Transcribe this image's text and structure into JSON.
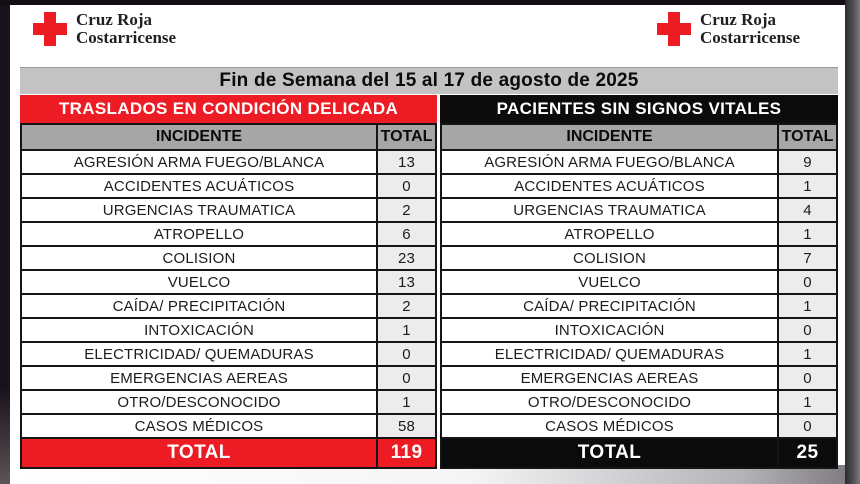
{
  "logo": {
    "line1": "Cruz Roja",
    "line2": "Costarricense"
  },
  "title": "Fin de Semana del 15 al 17 de agosto de 2025",
  "colors": {
    "brand_red": "#ED1C24",
    "band_black": "#0B0B0B",
    "title_bar_gray": "#C3C3C3",
    "column_header_gray": "#A6A6A6",
    "total_cell_gray": "#ECECEC",
    "border_black": "#151515"
  },
  "tables": [
    {
      "name": "TRASLADOS EN CONDICIÓN DELICADA",
      "theme": "red",
      "columns": {
        "incident": "INCIDENTE",
        "total": "TOTAL"
      },
      "rows": [
        [
          "AGRESIÓN ARMA FUEGO/BLANCA",
          13
        ],
        [
          "ACCIDENTES ACUÁTICOS",
          0
        ],
        [
          "URGENCIAS TRAUMATICA",
          2
        ],
        [
          "ATROPELLO",
          6
        ],
        [
          "COLISION",
          23
        ],
        [
          "VUELCO",
          13
        ],
        [
          "CAÍDA/ PRECIPITACIÓN",
          2
        ],
        [
          "INTOXICACIÓN",
          1
        ],
        [
          "ELECTRICIDAD/ QUEMADURAS",
          0
        ],
        [
          "EMERGENCIAS AEREAS",
          0
        ],
        [
          "OTRO/DESCONOCIDO",
          1
        ],
        [
          "CASOS MÉDICOS",
          58
        ]
      ],
      "total_label": "TOTAL",
      "total_value": 119
    },
    {
      "name": "PACIENTES SIN SIGNOS VITALES",
      "theme": "black",
      "columns": {
        "incident": "INCIDENTE",
        "total": "TOTAL"
      },
      "rows": [
        [
          "AGRESIÓN ARMA FUEGO/BLANCA",
          9
        ],
        [
          "ACCIDENTES ACUÁTICOS",
          1
        ],
        [
          "URGENCIAS TRAUMATICA",
          4
        ],
        [
          "ATROPELLO",
          1
        ],
        [
          "COLISION",
          7
        ],
        [
          "VUELCO",
          0
        ],
        [
          "CAÍDA/ PRECIPITACIÓN",
          1
        ],
        [
          "INTOXICACIÓN",
          0
        ],
        [
          "ELECTRICIDAD/ QUEMADURAS",
          1
        ],
        [
          "EMERGENCIAS AEREAS",
          0
        ],
        [
          "OTRO/DESCONOCIDO",
          1
        ],
        [
          "CASOS MÉDICOS",
          0
        ]
      ],
      "total_label": "TOTAL",
      "total_value": 25
    }
  ]
}
